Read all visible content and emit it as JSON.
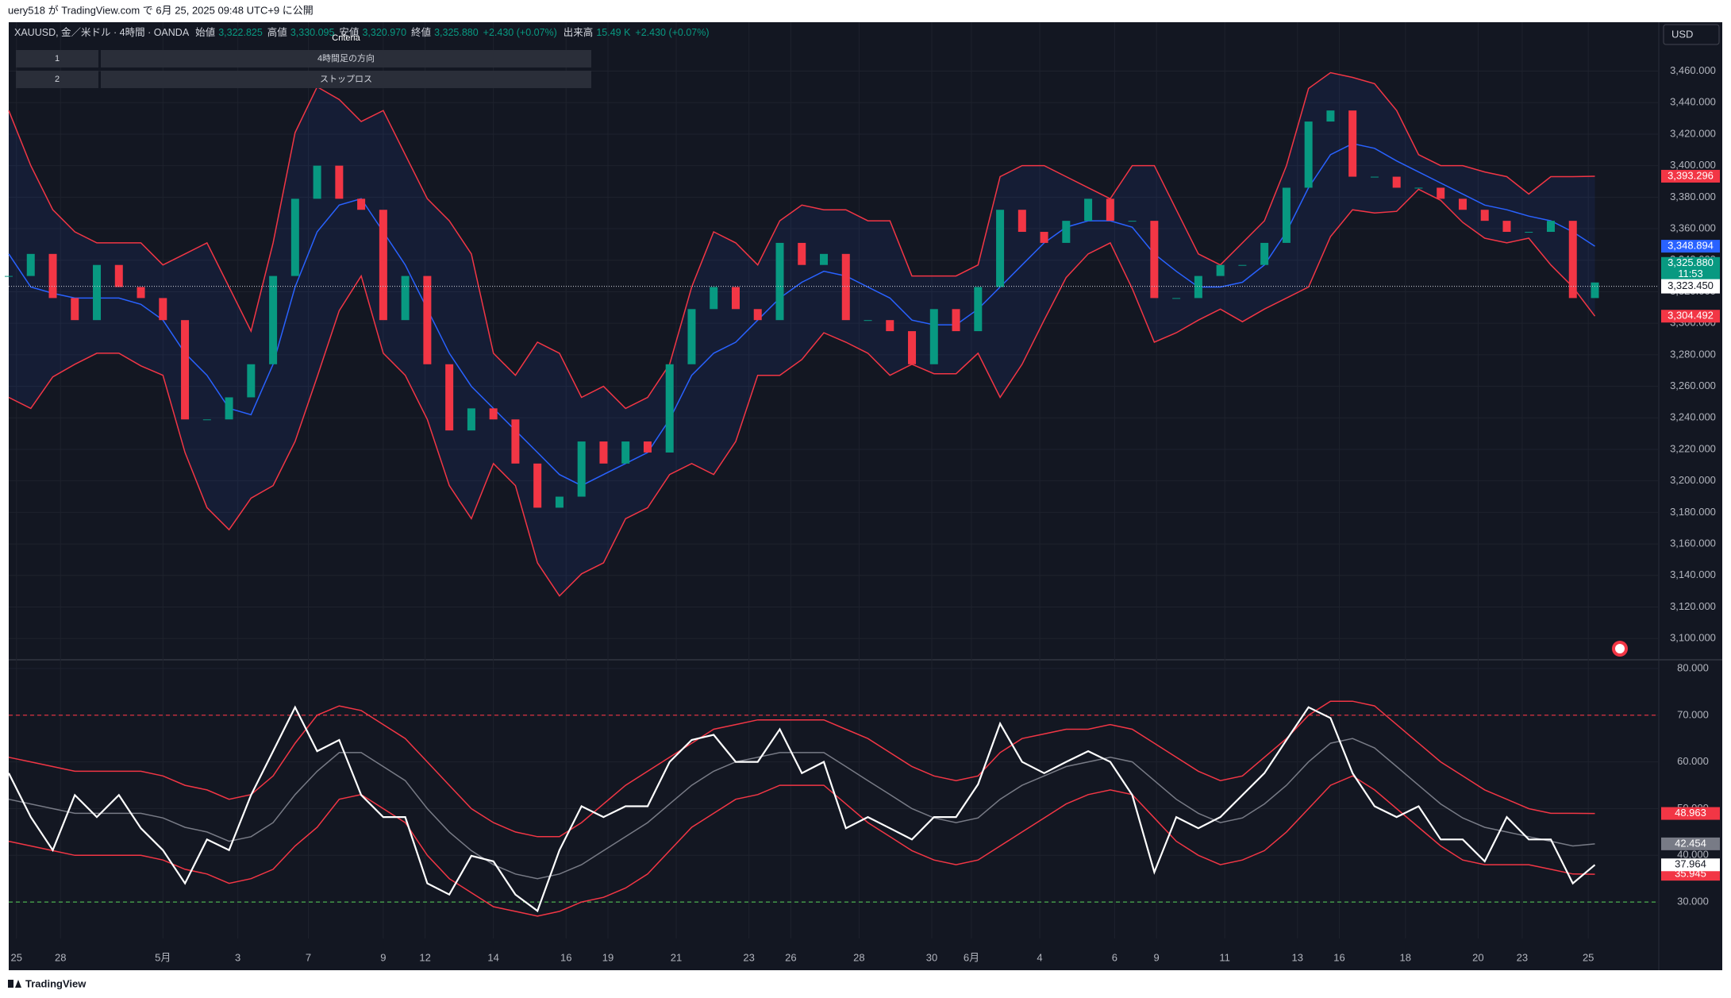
{
  "header": {
    "text": "uery518 が TradingView.com で 6月 25, 2025 09:48 UTC+9 に公開"
  },
  "legend": {
    "symbol": "XAUUSD, 金／米ドル · 4時間 · OANDA",
    "open_label": "始値",
    "open": "3,322.825",
    "high_label": "高値",
    "high": "3,330.095",
    "low_label": "安値",
    "low": "3,320.970",
    "close_label": "終値",
    "close": "3,325.880",
    "change": "+2.430 (+0.07%)",
    "volume_label": "出来高",
    "volume": "15.49 K",
    "volume_change": "+2.430 (+0.07%)"
  },
  "table": {
    "header": "Criteria",
    "rows": [
      [
        "1",
        "4時間足の方向"
      ],
      [
        "2",
        "ストップロス"
      ]
    ]
  },
  "currency_button": "USD",
  "footer": {
    "brand": "TradingView"
  },
  "chart_data": [
    {
      "type": "candlestick",
      "up_color": "#089981",
      "down_color": "#f23645",
      "values": [
        3330,
        3344,
        3316,
        3302,
        3337,
        3323,
        3316,
        3302,
        3239,
        3239,
        3253,
        3274,
        3330,
        3379,
        3400,
        3379,
        3372,
        3302,
        3330,
        3274,
        3232,
        3246,
        3239,
        3211,
        3183,
        3190,
        3225,
        3211,
        3225,
        3218,
        3274,
        3309,
        3323,
        3309,
        3302,
        3351,
        3337,
        3344,
        3302,
        3302,
        3295,
        3274,
        3309,
        3295,
        3323,
        3372,
        3358,
        3351,
        3365,
        3379,
        3365,
        3365,
        3316,
        3316,
        3330,
        3337,
        3337,
        3351,
        3386,
        3428,
        3435,
        3393,
        3393,
        3386,
        3386,
        3379,
        3372,
        3365,
        3358,
        3358,
        3365,
        3316,
        3325.88
      ],
      "last_label": "3,325.880",
      "countdown": "11:53",
      "price_line": {
        "value": 3323.45,
        "label": "3,323.450"
      },
      "band_fill": "rgba(41,98,255,0.09)",
      "series": [
        {
          "color": "#f23645",
          "last_label": "3,393.296",
          "values": [
            3435,
            3400,
            3372,
            3358,
            3351,
            3351,
            3351,
            3337,
            3344,
            3351,
            3323,
            3295,
            3351,
            3421,
            3450,
            3442,
            3428,
            3435,
            3407,
            3379,
            3365,
            3344,
            3281,
            3267,
            3288,
            3281,
            3253,
            3260,
            3246,
            3253,
            3274,
            3323,
            3358,
            3351,
            3337,
            3365,
            3375,
            3372,
            3372,
            3365,
            3365,
            3330,
            3330,
            3330,
            3337,
            3393,
            3400,
            3400,
            3393,
            3386,
            3379,
            3400,
            3400,
            3372,
            3344,
            3337,
            3351,
            3365,
            3400,
            3449,
            3459,
            3456,
            3452,
            3435,
            3407,
            3400,
            3400,
            3396,
            3393,
            3382,
            3393,
            3393,
            3393.296
          ]
        },
        {
          "color": "#2962ff",
          "last_label": "3,348.894",
          "values": [
            3344,
            3323,
            3319,
            3316,
            3316,
            3316,
            3312,
            3302,
            3281,
            3267,
            3246,
            3242,
            3274,
            3323,
            3358,
            3375,
            3379,
            3358,
            3337,
            3309,
            3281,
            3260,
            3246,
            3232,
            3218,
            3204,
            3197,
            3204,
            3211,
            3218,
            3239,
            3267,
            3281,
            3288,
            3302,
            3316,
            3326,
            3333,
            3330,
            3323,
            3316,
            3302,
            3299,
            3299,
            3309,
            3323,
            3337,
            3351,
            3361,
            3365,
            3365,
            3361,
            3344,
            3333,
            3323,
            3323,
            3326,
            3337,
            3358,
            3386,
            3407,
            3414,
            3411,
            3403,
            3396,
            3389,
            3382,
            3375,
            3372,
            3368,
            3365,
            3358,
            3348.894
          ]
        },
        {
          "color": "#f23645",
          "last_label": "3,304.492",
          "values": [
            3253,
            3246,
            3266,
            3274,
            3281,
            3281,
            3273,
            3267,
            3218,
            3183,
            3169,
            3189,
            3197,
            3225,
            3266,
            3308,
            3330,
            3281,
            3267,
            3239,
            3197,
            3176,
            3211,
            3197,
            3148,
            3127,
            3141,
            3148,
            3176,
            3183,
            3204,
            3211,
            3204,
            3225,
            3267,
            3267,
            3277,
            3294,
            3288,
            3281,
            3267,
            3274,
            3268,
            3268,
            3281,
            3253,
            3274,
            3302,
            3329,
            3344,
            3351,
            3322,
            3288,
            3294,
            3302,
            3309,
            3301,
            3309,
            3316,
            3323,
            3355,
            3372,
            3370,
            3371,
            3385,
            3378,
            3364,
            3354,
            3351,
            3354,
            3337,
            3323,
            3304.492
          ]
        }
      ],
      "xlim": [
        0,
        74.9
      ],
      "xticks": [
        {
          "value": 0.35,
          "label": "25"
        },
        {
          "value": 2.35,
          "label": "28"
        },
        {
          "value": 7.0,
          "label": "5月"
        },
        {
          "value": 10.4,
          "label": "3"
        },
        {
          "value": 13.6,
          "label": "7"
        },
        {
          "value": 17.0,
          "label": "9"
        },
        {
          "value": 18.9,
          "label": "12"
        },
        {
          "value": 22.0,
          "label": "14"
        },
        {
          "value": 25.3,
          "label": "16"
        },
        {
          "value": 27.2,
          "label": "19"
        },
        {
          "value": 30.3,
          "label": "21"
        },
        {
          "value": 33.6,
          "label": "23"
        },
        {
          "value": 35.5,
          "label": "26"
        },
        {
          "value": 38.6,
          "label": "28"
        },
        {
          "value": 41.9,
          "label": "30"
        },
        {
          "value": 43.7,
          "label": "6月"
        },
        {
          "value": 46.8,
          "label": "4"
        },
        {
          "value": 50.2,
          "label": "6"
        },
        {
          "value": 52.1,
          "label": "9"
        },
        {
          "value": 55.2,
          "label": "11"
        },
        {
          "value": 58.5,
          "label": "13"
        },
        {
          "value": 60.4,
          "label": "16"
        },
        {
          "value": 63.4,
          "label": "18"
        },
        {
          "value": 66.7,
          "label": "20"
        },
        {
          "value": 68.7,
          "label": "23"
        },
        {
          "value": 71.7,
          "label": "25"
        }
      ],
      "ylim": [
        3087,
        3491
      ],
      "yticks": [
        {
          "value": 3100,
          "label": "3,100.000"
        },
        {
          "value": 3120,
          "label": "3,120.000"
        },
        {
          "value": 3140,
          "label": "3,140.000"
        },
        {
          "value": 3160,
          "label": "3,160.000"
        },
        {
          "value": 3180,
          "label": "3,180.000"
        },
        {
          "value": 3200,
          "label": "3,200.000"
        },
        {
          "value": 3220,
          "label": "3,220.000"
        },
        {
          "value": 3240,
          "label": "3,240.000"
        },
        {
          "value": 3260,
          "label": "3,260.000"
        },
        {
          "value": 3280,
          "label": "3,280.000"
        },
        {
          "value": 3300,
          "label": "3,300.000"
        },
        {
          "value": 3320,
          "label": "3,320.000"
        },
        {
          "value": 3340,
          "label": "3,340.000"
        },
        {
          "value": 3360,
          "label": "3,360.000"
        },
        {
          "value": 3380,
          "label": "3,380.000"
        },
        {
          "value": 3400,
          "label": "3,400.000"
        },
        {
          "value": 3420,
          "label": "3,420.000"
        },
        {
          "value": 3440,
          "label": "3,440.000"
        },
        {
          "value": 3460,
          "label": "3,460.000"
        }
      ],
      "grid": true
    },
    {
      "type": "line",
      "color": "#ffffff",
      "last_label": "37.964",
      "values": [
        57.6,
        48.2,
        41.1,
        52.9,
        48.2,
        52.9,
        45.8,
        41.1,
        34,
        43.4,
        41.1,
        52.9,
        62.3,
        71.7,
        62.3,
        64.7,
        52.9,
        48.2,
        48.2,
        34,
        31.6,
        39.9,
        38.7,
        31.6,
        28.1,
        41.1,
        50.5,
        48.2,
        50.5,
        50.5,
        60,
        64.7,
        65.8,
        60,
        60,
        67,
        57.6,
        60,
        45.8,
        48.2,
        45.8,
        43.4,
        48.2,
        48.2,
        55.2,
        68.2,
        60,
        57.6,
        60,
        62.3,
        60,
        52.9,
        36.4,
        48.2,
        45.8,
        48.2,
        52.9,
        57.6,
        64.7,
        71.7,
        69.4,
        57.6,
        50.5,
        48.2,
        50.5,
        43.4,
        43.4,
        38.7,
        48.2,
        43.4,
        43.4,
        34,
        37.964
      ],
      "series": [
        {
          "color": "#f23645",
          "last_label": "48.963",
          "values": [
            61,
            60,
            59,
            58,
            58,
            58,
            58,
            57,
            55,
            54,
            52,
            53,
            57,
            64,
            70,
            72,
            71,
            68,
            65,
            60,
            55,
            50,
            47,
            45,
            44,
            44,
            47,
            51,
            55,
            58,
            61,
            64,
            67,
            68,
            69,
            69,
            69,
            69,
            67,
            65,
            62,
            59,
            57,
            56,
            57,
            62,
            65,
            66,
            67,
            67,
            68,
            67,
            64,
            61,
            58,
            56,
            57,
            61,
            65,
            70,
            73,
            73,
            72,
            68,
            64,
            60,
            57,
            54,
            52,
            50,
            49,
            49,
            48.963
          ]
        },
        {
          "color": "#787b86",
          "last_label": "42.454",
          "values": [
            52,
            51,
            50,
            49,
            49,
            49,
            49,
            48,
            46,
            45,
            43,
            44,
            47,
            53,
            58,
            62,
            62,
            59,
            56,
            50,
            45,
            41,
            38,
            36,
            35,
            36,
            38,
            41,
            44,
            47,
            51,
            55,
            58,
            60,
            61,
            62,
            62,
            62,
            59,
            56,
            53,
            50,
            48,
            47,
            48,
            52,
            55,
            57,
            59,
            60,
            61,
            60,
            56,
            52,
            49,
            47,
            48,
            51,
            55,
            60,
            64,
            65,
            63,
            59,
            55,
            51,
            48,
            46,
            45,
            44,
            43,
            42,
            42.454
          ]
        },
        {
          "color": "#f23645",
          "last_label": "35.945",
          "values": [
            43,
            42,
            41,
            40,
            40,
            40,
            40,
            39,
            37,
            36,
            34,
            35,
            37,
            42,
            46,
            52,
            53,
            50,
            47,
            40,
            35,
            32,
            29,
            28,
            27,
            28,
            30,
            31,
            33,
            36,
            41,
            46,
            49,
            52,
            53,
            55,
            55,
            55,
            51,
            47,
            44,
            41,
            39,
            38,
            39,
            42,
            45,
            48,
            51,
            53,
            54,
            53,
            48,
            43,
            40,
            38,
            39,
            41,
            45,
            50,
            55,
            57,
            54,
            50,
            46,
            42,
            39,
            38,
            38,
            38,
            37,
            36,
            35.945
          ]
        }
      ],
      "hlines": [
        {
          "value": 70,
          "color": "#f23645"
        },
        {
          "value": 30,
          "color": "#4caf50"
        }
      ],
      "ylim": [
        22.2,
        81.7
      ],
      "yticks": [
        {
          "value": 30,
          "label": "30.000"
        },
        {
          "value": 40,
          "label": "40.000"
        },
        {
          "value": 50,
          "label": "50.000"
        },
        {
          "value": 60,
          "label": "60.000"
        },
        {
          "value": 70,
          "label": "70.000"
        },
        {
          "value": 80,
          "label": "80.000"
        }
      ],
      "grid": true
    }
  ]
}
